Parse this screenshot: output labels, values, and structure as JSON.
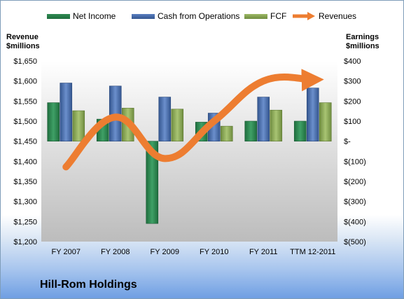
{
  "company_label": "Hill-Rom Holdings",
  "colors": {
    "net_income": "#2e8b57",
    "cash_from_operations": "#4f73b3",
    "fcf": "#8fb05a",
    "revenues": "#ed7d31"
  },
  "chart_data": {
    "type": "bar",
    "categories": [
      "FY 2007",
      "FY 2008",
      "FY 2009",
      "FY 2010",
      "FY 2011",
      "TTM 12-2011"
    ],
    "series": [
      {
        "name": "Net Income",
        "axis": "right",
        "values": [
          192,
          110,
          -410,
          95,
          100,
          100
        ]
      },
      {
        "name": "Cash from Operations",
        "axis": "right",
        "values": [
          290,
          275,
          220,
          140,
          220,
          265
        ]
      },
      {
        "name": "FCF",
        "axis": "right",
        "values": [
          152,
          165,
          160,
          75,
          155,
          192
        ]
      },
      {
        "name": "Revenues",
        "axis": "left",
        "type": "line",
        "values": [
          1386,
          1510,
          1407,
          1500,
          1600,
          1603
        ]
      }
    ],
    "left_axis": {
      "label_line1": "Revenue",
      "label_line2": "$millions",
      "ylim": [
        1200,
        1650
      ],
      "ticks": [
        "$1,200",
        "$1,250",
        "$1,300",
        "$1,350",
        "$1,400",
        "$1,450",
        "$1,500",
        "$1,550",
        "$1,600",
        "$1,650"
      ]
    },
    "right_axis": {
      "label_line1": "Earnings",
      "label_line2": "$millions",
      "ylim": [
        -500,
        400
      ],
      "ticks": [
        "$(500)",
        "$(400)",
        "$(300)",
        "$(200)",
        "$(100)",
        "$-",
        "$100",
        "$200",
        "$300",
        "$400"
      ]
    },
    "legend": [
      "Net Income",
      "Cash from Operations",
      "FCF",
      "Revenues"
    ],
    "legend_position": "top",
    "grid": false
  }
}
